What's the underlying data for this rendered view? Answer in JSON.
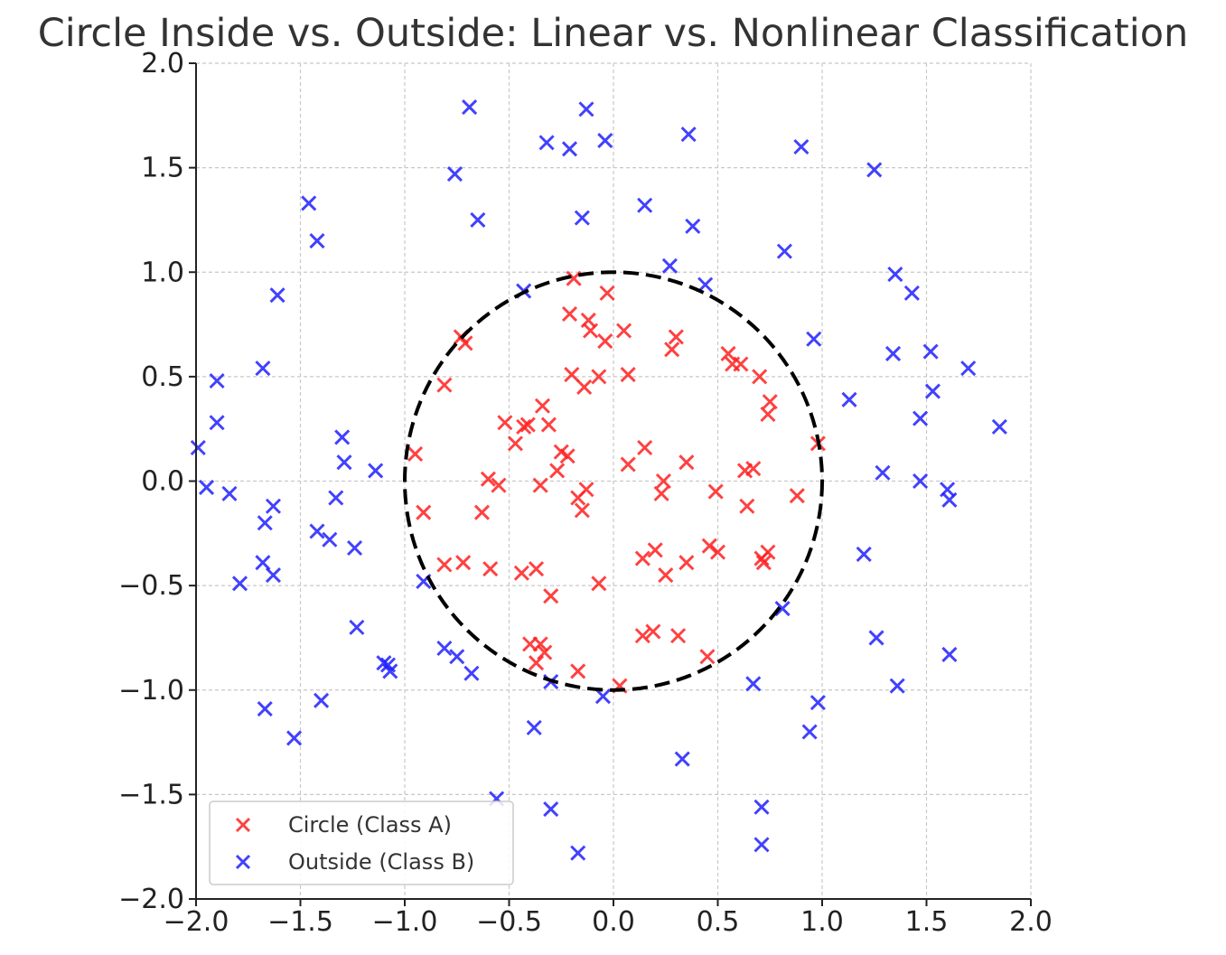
{
  "chart_data": {
    "type": "scatter",
    "title": "Circle Inside vs. Outside: Linear vs. Nonlinear Classification",
    "xlabel": "",
    "ylabel": "",
    "xlim": [
      -2.0,
      2.0
    ],
    "ylim": [
      -2.0,
      2.0
    ],
    "x_ticks": [
      -2.0,
      -1.5,
      -1.0,
      -0.5,
      0.0,
      0.5,
      1.0,
      1.5,
      2.0
    ],
    "y_ticks": [
      -2.0,
      -1.5,
      -1.0,
      -0.5,
      0.0,
      0.5,
      1.0,
      1.5,
      2.0
    ],
    "x_tick_labels": [
      "−2.0",
      "−1.5",
      "−1.0",
      "−0.5",
      "0.0",
      "0.5",
      "1.0",
      "1.5",
      "2.0"
    ],
    "y_tick_labels": [
      "−2.0",
      "−1.5",
      "−1.0",
      "−0.5",
      "0.0",
      "0.5",
      "1.0",
      "1.5",
      "2.0"
    ],
    "grid": true,
    "legend_position": "bottom-left",
    "boundary": {
      "shape": "circle",
      "center": [
        0,
        0
      ],
      "radius": 1.0,
      "style": "dashed",
      "color": "#000000"
    },
    "series": [
      {
        "name": "Circle (Class A)",
        "marker": "x",
        "color": "#ff2020",
        "points": [
          [
            -0.95,
            0.13
          ],
          [
            -0.91,
            -0.15
          ],
          [
            -0.81,
            0.46
          ],
          [
            -0.81,
            -0.4
          ],
          [
            -0.73,
            0.69
          ],
          [
            -0.71,
            0.66
          ],
          [
            -0.72,
            -0.39
          ],
          [
            -0.6,
            0.01
          ],
          [
            -0.59,
            -0.42
          ],
          [
            -0.63,
            -0.15
          ],
          [
            -0.55,
            -0.02
          ],
          [
            -0.52,
            0.28
          ],
          [
            -0.47,
            0.18
          ],
          [
            -0.43,
            0.26
          ],
          [
            -0.41,
            0.27
          ],
          [
            -0.44,
            -0.44
          ],
          [
            -0.37,
            -0.42
          ],
          [
            -0.34,
            0.36
          ],
          [
            -0.35,
            -0.02
          ],
          [
            -0.31,
            0.27
          ],
          [
            -0.27,
            0.05
          ],
          [
            -0.25,
            0.14
          ],
          [
            -0.22,
            0.12
          ],
          [
            -0.3,
            -0.55
          ],
          [
            -0.4,
            -0.78
          ],
          [
            -0.35,
            -0.78
          ],
          [
            -0.37,
            -0.87
          ],
          [
            -0.33,
            -0.82
          ],
          [
            -0.19,
            0.97
          ],
          [
            -0.21,
            0.8
          ],
          [
            -0.12,
            0.77
          ],
          [
            -0.11,
            0.72
          ],
          [
            -0.2,
            0.51
          ],
          [
            -0.14,
            0.45
          ],
          [
            -0.04,
            0.67
          ],
          [
            -0.03,
            0.9
          ],
          [
            -0.07,
            0.5
          ],
          [
            -0.13,
            -0.04
          ],
          [
            -0.17,
            -0.08
          ],
          [
            -0.15,
            -0.14
          ],
          [
            -0.07,
            -0.49
          ],
          [
            -0.17,
            -0.91
          ],
          [
            0.05,
            0.72
          ],
          [
            0.07,
            0.51
          ],
          [
            0.07,
            0.08
          ],
          [
            0.14,
            -0.37
          ],
          [
            0.14,
            -0.74
          ],
          [
            0.15,
            0.16
          ],
          [
            0.19,
            -0.72
          ],
          [
            0.2,
            -0.33
          ],
          [
            0.23,
            -0.06
          ],
          [
            0.24,
            0.0
          ],
          [
            0.25,
            -0.45
          ],
          [
            0.28,
            0.63
          ],
          [
            0.3,
            0.69
          ],
          [
            0.31,
            -0.74
          ],
          [
            0.35,
            0.09
          ],
          [
            0.35,
            -0.39
          ],
          [
            0.45,
            -0.84
          ],
          [
            0.46,
            -0.31
          ],
          [
            0.49,
            -0.05
          ],
          [
            0.5,
            -0.34
          ],
          [
            0.55,
            0.61
          ],
          [
            0.57,
            0.56
          ],
          [
            0.61,
            0.56
          ],
          [
            0.63,
            0.05
          ],
          [
            0.64,
            -0.12
          ],
          [
            0.67,
            0.06
          ],
          [
            0.7,
            0.5
          ],
          [
            0.71,
            -0.37
          ],
          [
            0.72,
            -0.39
          ],
          [
            0.74,
            -0.34
          ],
          [
            0.74,
            0.32
          ],
          [
            0.75,
            0.38
          ],
          [
            0.88,
            -0.07
          ],
          [
            0.98,
            0.18
          ],
          [
            0.03,
            -0.98
          ]
        ]
      },
      {
        "name": "Outside (Class B)",
        "marker": "x",
        "color": "#2020ff",
        "points": [
          [
            -1.99,
            0.16
          ],
          [
            -1.95,
            -0.03
          ],
          [
            -1.9,
            0.48
          ],
          [
            -1.9,
            0.28
          ],
          [
            -1.84,
            -0.06
          ],
          [
            -1.79,
            -0.49
          ],
          [
            -1.68,
            0.54
          ],
          [
            -1.67,
            -0.2
          ],
          [
            -1.68,
            -0.39
          ],
          [
            -1.67,
            -1.09
          ],
          [
            -1.63,
            -0.12
          ],
          [
            -1.63,
            -0.45
          ],
          [
            -1.61,
            0.89
          ],
          [
            -1.53,
            -1.23
          ],
          [
            -1.46,
            1.33
          ],
          [
            -1.42,
            1.15
          ],
          [
            -1.42,
            -0.24
          ],
          [
            -1.4,
            -1.05
          ],
          [
            -1.36,
            -0.28
          ],
          [
            -1.33,
            -0.08
          ],
          [
            -1.3,
            0.21
          ],
          [
            -1.29,
            0.09
          ],
          [
            -1.24,
            -0.32
          ],
          [
            -1.23,
            -0.7
          ],
          [
            -1.14,
            0.05
          ],
          [
            -1.1,
            -0.87
          ],
          [
            -1.08,
            -0.88
          ],
          [
            -1.07,
            -0.91
          ],
          [
            -0.91,
            -0.48
          ],
          [
            -0.81,
            -0.8
          ],
          [
            -0.75,
            -0.84
          ],
          [
            -0.76,
            1.47
          ],
          [
            -0.69,
            1.79
          ],
          [
            -0.68,
            -0.92
          ],
          [
            -0.65,
            1.25
          ],
          [
            -0.56,
            -1.52
          ],
          [
            -0.43,
            0.91
          ],
          [
            -0.38,
            -1.18
          ],
          [
            -0.32,
            1.62
          ],
          [
            -0.3,
            -0.96
          ],
          [
            -0.3,
            -1.57
          ],
          [
            -0.21,
            1.59
          ],
          [
            -0.17,
            -1.78
          ],
          [
            -0.15,
            1.26
          ],
          [
            -0.13,
            1.78
          ],
          [
            -0.05,
            -1.03
          ],
          [
            -0.04,
            1.63
          ],
          [
            0.15,
            1.32
          ],
          [
            0.27,
            1.03
          ],
          [
            0.33,
            -1.33
          ],
          [
            0.36,
            1.66
          ],
          [
            0.38,
            1.22
          ],
          [
            0.44,
            0.94
          ],
          [
            0.67,
            -0.97
          ],
          [
            0.71,
            -1.56
          ],
          [
            0.71,
            -1.74
          ],
          [
            0.81,
            -0.61
          ],
          [
            0.82,
            1.1
          ],
          [
            0.9,
            1.6
          ],
          [
            0.94,
            -1.2
          ],
          [
            0.96,
            0.68
          ],
          [
            0.98,
            -1.06
          ],
          [
            1.13,
            0.39
          ],
          [
            1.2,
            -0.35
          ],
          [
            1.25,
            1.49
          ],
          [
            1.26,
            -0.75
          ],
          [
            1.29,
            0.04
          ],
          [
            1.34,
            0.61
          ],
          [
            1.35,
            0.99
          ],
          [
            1.36,
            -0.98
          ],
          [
            1.43,
            0.9
          ],
          [
            1.47,
            0.0
          ],
          [
            1.47,
            0.3
          ],
          [
            1.52,
            0.62
          ],
          [
            1.53,
            0.43
          ],
          [
            1.6,
            -0.04
          ],
          [
            1.61,
            -0.09
          ],
          [
            1.61,
            -0.83
          ],
          [
            1.7,
            0.54
          ],
          [
            1.85,
            0.26
          ]
        ]
      }
    ]
  }
}
